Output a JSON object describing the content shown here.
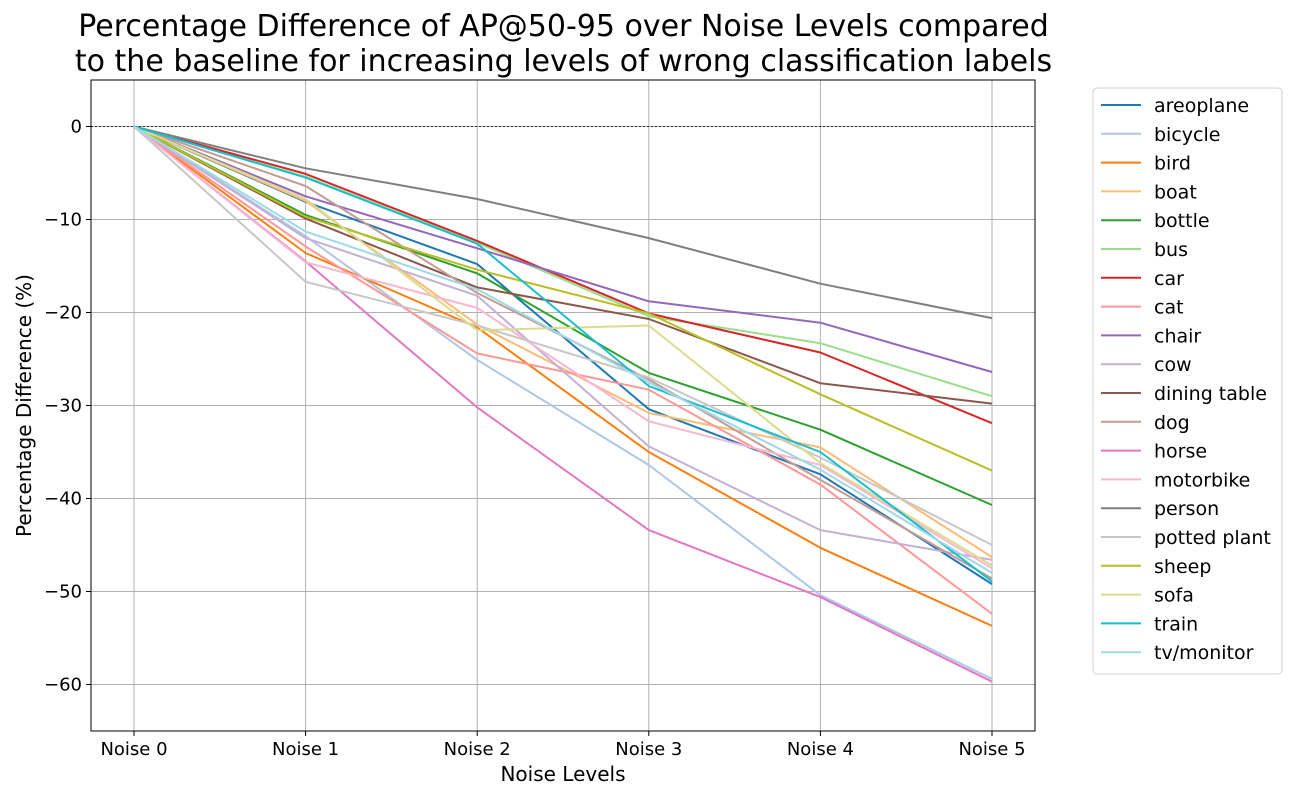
{
  "chart_data": {
    "type": "line",
    "title_lines": [
      "Percentage Difference of AP@50-95 over Noise Levels compared",
      "to the baseline for increasing levels of wrong classification labels"
    ],
    "xlabel": "Noise Levels",
    "ylabel": "Percentage Difference (%)",
    "categories": [
      "Noise 0",
      "Noise 1",
      "Noise 2",
      "Noise 3",
      "Noise 4",
      "Noise 5"
    ],
    "ylim": [
      -65,
      5
    ],
    "yticks": [
      0,
      -10,
      -20,
      -30,
      -40,
      -50,
      -60
    ],
    "grid": true,
    "reference_line": 0,
    "legend_position": "outside-right",
    "series": [
      {
        "name": "areoplane",
        "color": "#1f77b4",
        "values": [
          0,
          -8.1,
          -14.8,
          -30.4,
          -37.4,
          -49.2
        ]
      },
      {
        "name": "bicycle",
        "color": "#aec7e8",
        "values": [
          0,
          -11.8,
          -25.1,
          -36.4,
          -50.4,
          -59.4
        ]
      },
      {
        "name": "bird",
        "color": "#ff7f0e",
        "values": [
          0,
          -13.6,
          -21.6,
          -35.0,
          -45.3,
          -53.7
        ]
      },
      {
        "name": "boat",
        "color": "#ffbb78",
        "values": [
          0,
          -8.0,
          -21.3,
          -30.8,
          -34.5,
          -46.3
        ]
      },
      {
        "name": "bottle",
        "color": "#2ca02c",
        "values": [
          0,
          -9.5,
          -15.8,
          -26.5,
          -32.6,
          -40.7
        ]
      },
      {
        "name": "bus",
        "color": "#98df8a",
        "values": [
          0,
          -5.4,
          -12.5,
          -20.4,
          -23.3,
          -29.0
        ]
      },
      {
        "name": "car",
        "color": "#d62728",
        "values": [
          0,
          -5.1,
          -12.3,
          -20.1,
          -24.3,
          -31.9
        ]
      },
      {
        "name": "cat",
        "color": "#ff9896",
        "values": [
          0,
          -12.9,
          -24.4,
          -28.3,
          -38.5,
          -52.4
        ]
      },
      {
        "name": "chair",
        "color": "#9467bd",
        "values": [
          0,
          -7.5,
          -13.1,
          -18.8,
          -21.1,
          -26.4
        ]
      },
      {
        "name": "cow",
        "color": "#c5b0d5",
        "values": [
          0,
          -12.0,
          -18.2,
          -34.4,
          -43.4,
          -46.6
        ]
      },
      {
        "name": "dining table",
        "color": "#8c564b",
        "values": [
          0,
          -9.9,
          -17.3,
          -20.7,
          -27.6,
          -29.8
        ]
      },
      {
        "name": "dog",
        "color": "#c49c94",
        "values": [
          0,
          -6.4,
          -17.9,
          -27.2,
          -38.0,
          -48.6
        ]
      },
      {
        "name": "horse",
        "color": "#e377c2",
        "values": [
          0,
          -14.5,
          -30.2,
          -43.4,
          -50.6,
          -59.7
        ]
      },
      {
        "name": "motorbike",
        "color": "#f7b6d2",
        "values": [
          0,
          -14.6,
          -19.5,
          -31.7,
          -36.4,
          -47.5
        ]
      },
      {
        "name": "person",
        "color": "#7f7f7f",
        "values": [
          0,
          -4.5,
          -7.8,
          -12.0,
          -16.9,
          -20.6
        ]
      },
      {
        "name": "potted plant",
        "color": "#c7c7c7",
        "values": [
          0,
          -16.7,
          -21.4,
          -27.0,
          -35.6,
          -45.0
        ]
      },
      {
        "name": "sheep",
        "color": "#bcbd22",
        "values": [
          0,
          -9.7,
          -15.4,
          -20.1,
          -28.8,
          -37.0
        ]
      },
      {
        "name": "sofa",
        "color": "#dbdb8d",
        "values": [
          0,
          -7.8,
          -21.9,
          -21.4,
          -36.2,
          -47.2
        ]
      },
      {
        "name": "train",
        "color": "#17becf",
        "values": [
          0,
          -5.5,
          -12.6,
          -27.9,
          -35.0,
          -48.9
        ]
      },
      {
        "name": "tv/monitor",
        "color": "#9edae5",
        "values": [
          0,
          -11.3,
          -17.5,
          -27.5,
          -36.9,
          -48.0
        ]
      }
    ]
  }
}
